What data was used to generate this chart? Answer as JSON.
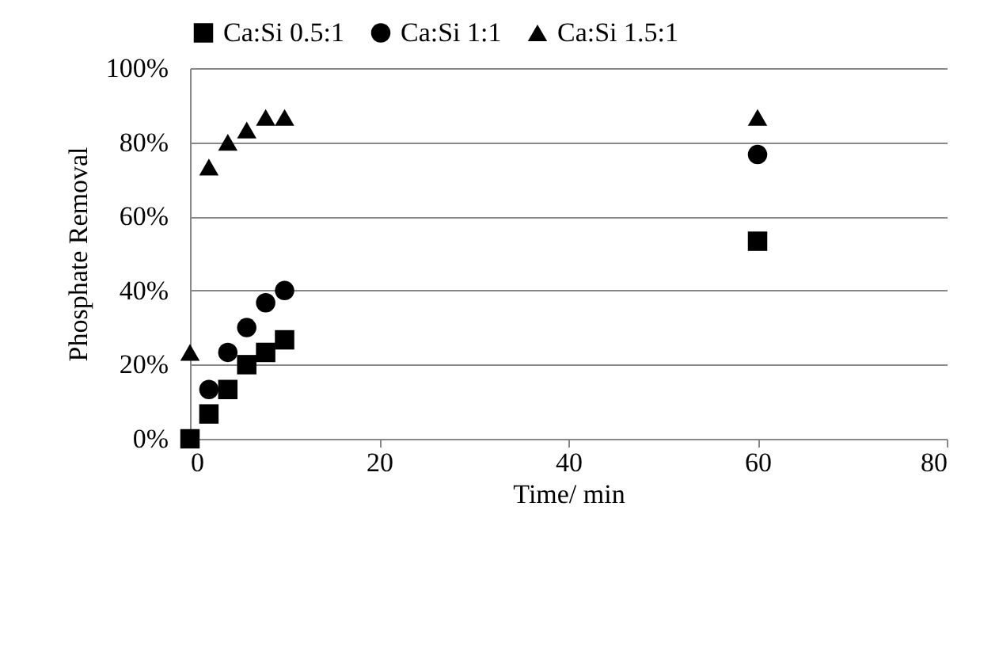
{
  "chart_data": {
    "type": "scatter",
    "xlabel": "Time/ min",
    "ylabel": "Phosphate Removal",
    "series": [
      {
        "name": "Ca:Si 0.5:1",
        "color": "#000000",
        "marker": "square",
        "x": [
          0,
          2,
          4,
          6,
          8,
          10,
          60
        ],
        "values": [
          0,
          6.7,
          13.3,
          20,
          23.3,
          26.7,
          53.3
        ]
      },
      {
        "name": "Ca:Si 1:1",
        "color": "#000000",
        "marker": "circle",
        "x": [
          2,
          4,
          6,
          8,
          10,
          60
        ],
        "values": [
          13.3,
          23.3,
          30,
          36.7,
          40,
          76.7
        ]
      },
      {
        "name": "Ca:Si 1.5:1",
        "color": "#000000",
        "marker": "triangle",
        "x": [
          0,
          2,
          4,
          6,
          8,
          10,
          60
        ],
        "values": [
          23.3,
          73.3,
          80,
          83.3,
          86.7,
          86.7,
          86.7
        ]
      }
    ],
    "xlim": [
      0,
      80
    ],
    "xticks": [
      0,
      20,
      40,
      60,
      80
    ],
    "ylim": [
      0,
      100
    ],
    "yticks": [
      {
        "value": 0,
        "label": "0%"
      },
      {
        "value": 20,
        "label": "20%"
      },
      {
        "value": 40,
        "label": "40%"
      },
      {
        "value": 60,
        "label": "60%"
      },
      {
        "value": 80,
        "label": "80%"
      },
      {
        "value": 100,
        "label": "100%"
      }
    ],
    "grid": "y",
    "legend": "top"
  }
}
